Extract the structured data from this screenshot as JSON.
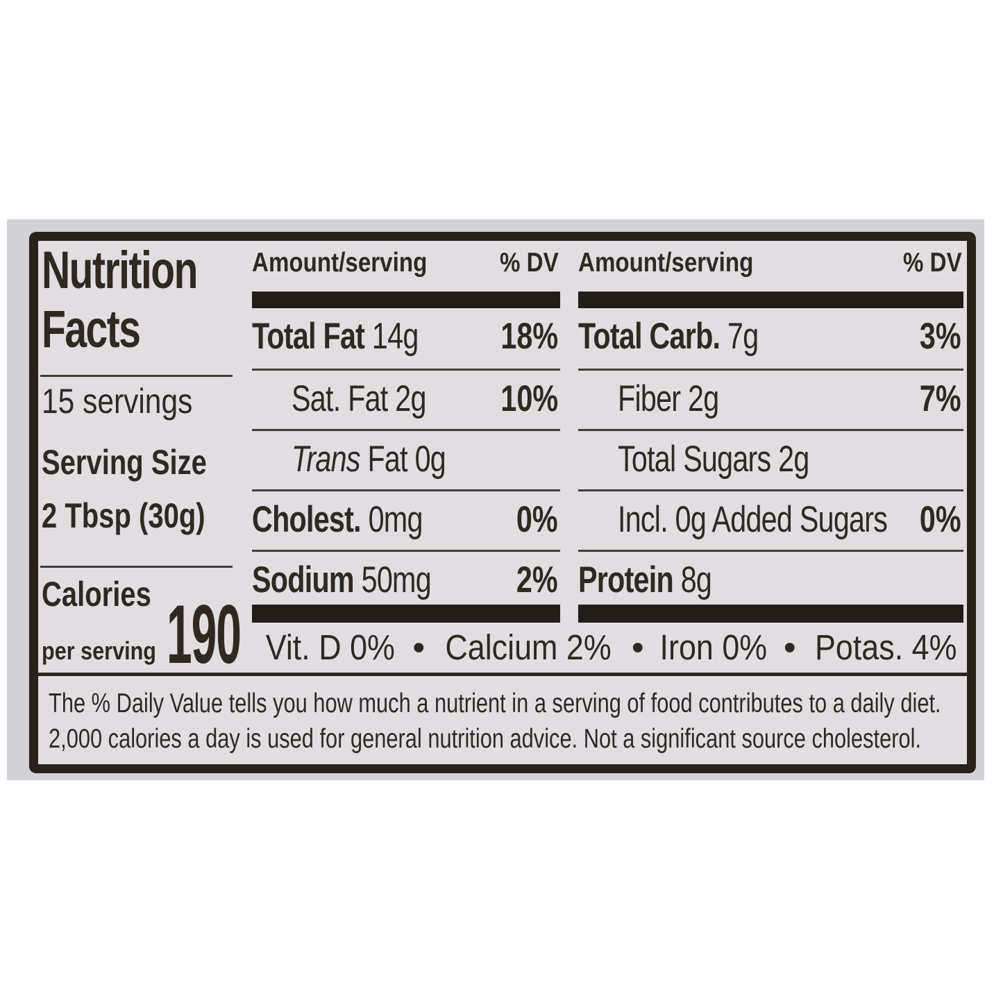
{
  "colors": {
    "page_background": "#ffffff",
    "photo_surface": "#d3d2d6",
    "label_background": "#e0dee1",
    "ink": "#2f2922",
    "bar": "#221d18"
  },
  "label": {
    "title_line1": "Nutrition",
    "title_line2": "Facts",
    "servings": "15 servings",
    "serving_size_label": "Serving Size",
    "serving_size_value": "2 Tbsp (30g)",
    "calories_label": "Calories",
    "calories_sublabel": "per serving",
    "calories_value": "190",
    "columns": [
      {
        "header_amount": "Amount/serving",
        "header_dv": "% DV",
        "rows": [
          {
            "italic_prefix": "",
            "name": "Total Fat",
            "bold": true,
            "amount": "14g",
            "dv": "18%",
            "indent": false
          },
          {
            "italic_prefix": "",
            "name": "Sat. Fat",
            "bold": false,
            "amount": "2g",
            "dv": "10%",
            "indent": true
          },
          {
            "italic_prefix": "Trans",
            "name": "Fat",
            "bold": false,
            "amount": "0g",
            "dv": "",
            "indent": true
          },
          {
            "italic_prefix": "",
            "name": "Cholest.",
            "bold": true,
            "amount": "0mg",
            "dv": "0%",
            "indent": false
          },
          {
            "italic_prefix": "",
            "name": "Sodium",
            "bold": true,
            "amount": "50mg",
            "dv": "2%",
            "indent": false
          }
        ]
      },
      {
        "header_amount": "Amount/serving",
        "header_dv": "% DV",
        "rows": [
          {
            "italic_prefix": "",
            "name": "Total Carb.",
            "bold": true,
            "amount": "7g",
            "dv": "3%",
            "indent": false
          },
          {
            "italic_prefix": "",
            "name": "Fiber",
            "bold": false,
            "amount": "2g",
            "dv": "7%",
            "indent": true
          },
          {
            "italic_prefix": "",
            "name": "Total Sugars",
            "bold": false,
            "amount": "2g",
            "dv": "",
            "indent": true
          },
          {
            "italic_prefix": "",
            "name": "Incl. 0g Added Sugars",
            "bold": false,
            "amount": "",
            "dv": "0%",
            "indent": true
          },
          {
            "italic_prefix": "",
            "name": "Protein",
            "bold": true,
            "amount": "8g",
            "dv": "",
            "indent": false
          }
        ]
      }
    ],
    "vitamins": [
      "Vit. D 0%",
      "Calcium 2%",
      "Iron 0%",
      "Potas. 4%"
    ],
    "vitamin_bullet": "•",
    "footnote_line1": "The % Daily Value tells you how much a nutrient in a serving of food contributes to a daily diet.",
    "footnote_line2": "2,000 calories a day is used for general nutrition advice. Not a significant source cholesterol."
  }
}
